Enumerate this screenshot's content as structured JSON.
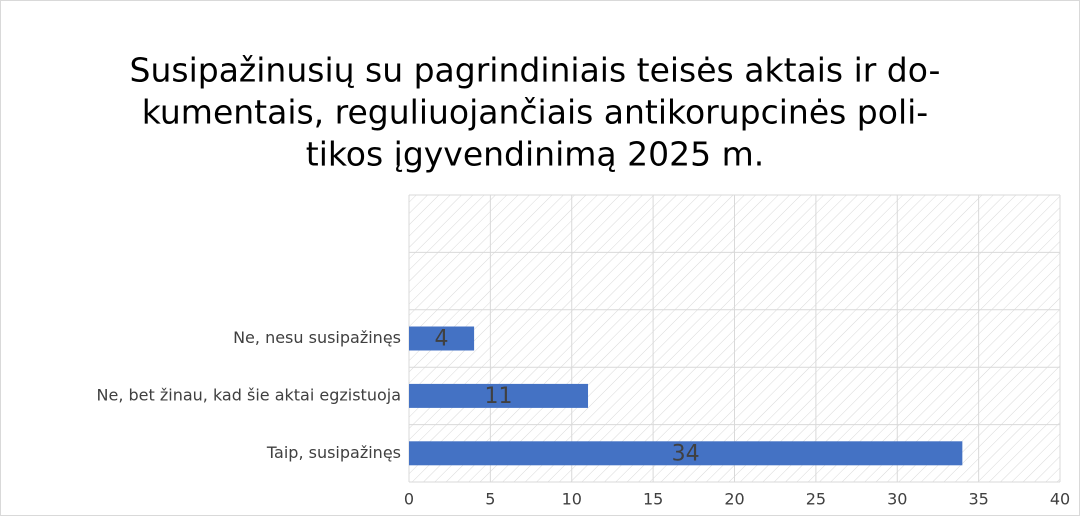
{
  "chart_data": {
    "type": "bar",
    "orientation": "horizontal",
    "title": [
      "Susipažinusių su pagrindiniais teisės aktais ir do-",
      "kumentais, reguliuojančiais antikorupcinės poli-",
      "tikos įgyvendinimą 2025 m."
    ],
    "categories": [
      "Taip, susipažinęs",
      "Ne, bet žinau, kad šie aktai egzistuoja",
      "Ne, nesu susipažinęs",
      null,
      null
    ],
    "values": [
      34,
      11,
      4,
      null,
      null
    ],
    "color": "#4472c4",
    "xlim": [
      0,
      40
    ],
    "xticks": [
      0,
      5,
      10,
      15,
      20,
      25,
      30,
      35,
      40
    ],
    "grid": true
  }
}
